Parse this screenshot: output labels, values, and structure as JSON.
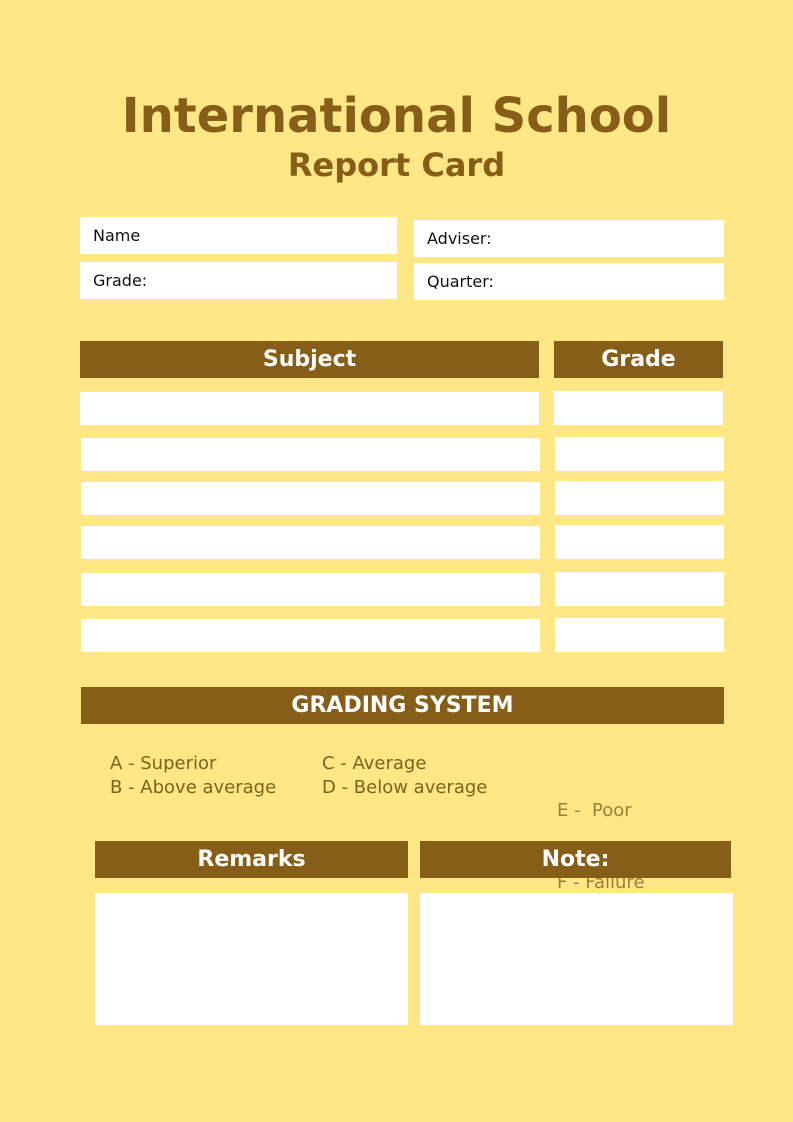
{
  "header": {
    "title": "International  School",
    "subtitle": "Report Card"
  },
  "info": {
    "name": "Name",
    "grade": "Grade:",
    "adviser": "Adviser:",
    "quarter": "Quarter:"
  },
  "table": {
    "subject_header": "Subject",
    "grade_header": "Grade"
  },
  "grading": {
    "title": "GRADING SYSTEM",
    "col1": [
      "A - Superior",
      "B - Above average"
    ],
    "col2": [
      "C - Average",
      "D - Below average"
    ],
    "col3": [
      "E -  Poor",
      "F - Failure"
    ]
  },
  "footer": {
    "remarks": "Remarks",
    "note": "Note:"
  },
  "colors": {
    "background": "#fee784",
    "accent": "#875e18"
  }
}
